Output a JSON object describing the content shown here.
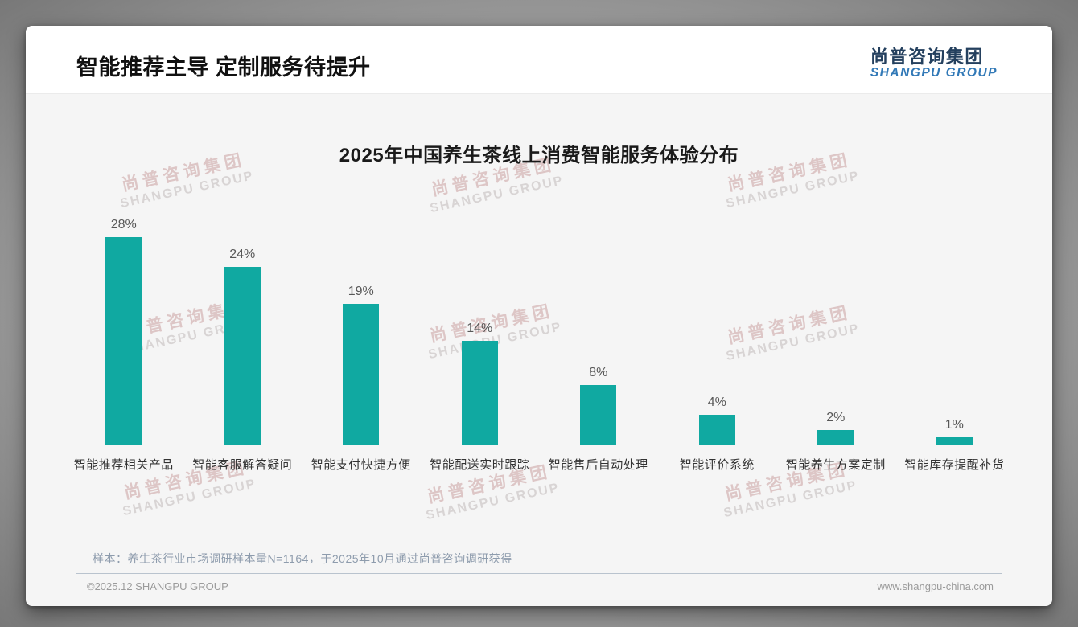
{
  "page": {
    "slide_title": "智能推荐主导 定制服务待提升",
    "logo": {
      "cn": "尚普咨询集团",
      "en": "SHANGPU GROUP"
    },
    "watermark": {
      "line1": "尚普咨询集团",
      "line2": "SHANGPU GROUP"
    },
    "note": "样本：养生茶行业市场调研样本量N=1164，于2025年10月通过尚普咨询调研获得",
    "footer_left": "©2025.12 SHANGPU GROUP",
    "footer_right": "www.shangpu-china.com"
  },
  "colors": {
    "bar": "#10a9a1",
    "logo_cn": "#24405e",
    "logo_en": "#3279b7"
  },
  "chart_data": {
    "type": "bar",
    "title": "2025年中国养生茶线上消费智能服务体验分布",
    "categories": [
      "智能推荐相关产品",
      "智能客服解答疑问",
      "智能支付快捷方便",
      "智能配送实时跟踪",
      "智能售后自动处理",
      "智能评价系统",
      "智能养生方案定制",
      "智能库存提醒补货"
    ],
    "values": [
      28,
      24,
      19,
      14,
      8,
      4,
      2,
      1
    ],
    "unit": "%",
    "data_labels": true,
    "xlabel": "",
    "ylabel": "",
    "ylim": [
      0,
      30
    ],
    "grid": false,
    "legend": false
  }
}
